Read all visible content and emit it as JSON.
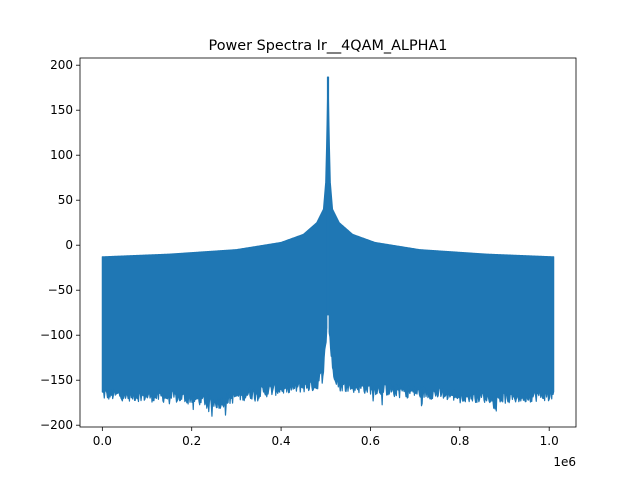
{
  "chart_data": {
    "type": "line",
    "title": "Power Spectra Ir__4QAM_ALPHA1",
    "xlabel": "",
    "ylabel": "",
    "x_offset_label": "1e6",
    "xlim": [
      -50000,
      1060000
    ],
    "ylim": [
      -202,
      208
    ],
    "x_ticks": [
      0,
      200000,
      400000,
      600000,
      800000,
      1000000
    ],
    "x_tick_labels": [
      "0.0",
      "0.2",
      "0.4",
      "0.6",
      "0.8",
      "1.0"
    ],
    "y_ticks": [
      -200,
      -150,
      -100,
      -50,
      0,
      50,
      100,
      150,
      200
    ],
    "y_tick_labels": [
      "−200",
      "−150",
      "−100",
      "−50",
      "0",
      "50",
      "100",
      "150",
      "200"
    ],
    "grid": false,
    "x_range": [
      0,
      1010000
    ],
    "center_x": 505000,
    "series": [
      {
        "color": "#1f77b4",
        "upper_envelope": {
          "x": [
            0,
            150000,
            300000,
            400000,
            450000,
            480000,
            495000,
            500000,
            502000,
            504000,
            505000,
            506000,
            508000,
            510000,
            515000,
            530000,
            560000,
            610000,
            710000,
            860000,
            1010000
          ],
          "y": [
            -13,
            -10,
            -5,
            3,
            12,
            25,
            40,
            70,
            110,
            160,
            187,
            160,
            110,
            70,
            40,
            25,
            12,
            3,
            -5,
            -10,
            -13
          ]
        },
        "lower_envelope": {
          "x": [
            0,
            100000,
            200000,
            260000,
            300000,
            400000,
            480000,
            495000,
            500000,
            505000,
            510000,
            515000,
            530000,
            610000,
            710000,
            810000,
            910000,
            1010000
          ],
          "y": [
            -168,
            -170,
            -172,
            -178,
            -170,
            -162,
            -158,
            -140,
            -110,
            -80,
            -110,
            -140,
            -158,
            -162,
            -166,
            -170,
            -172,
            -168
          ]
        }
      }
    ]
  }
}
